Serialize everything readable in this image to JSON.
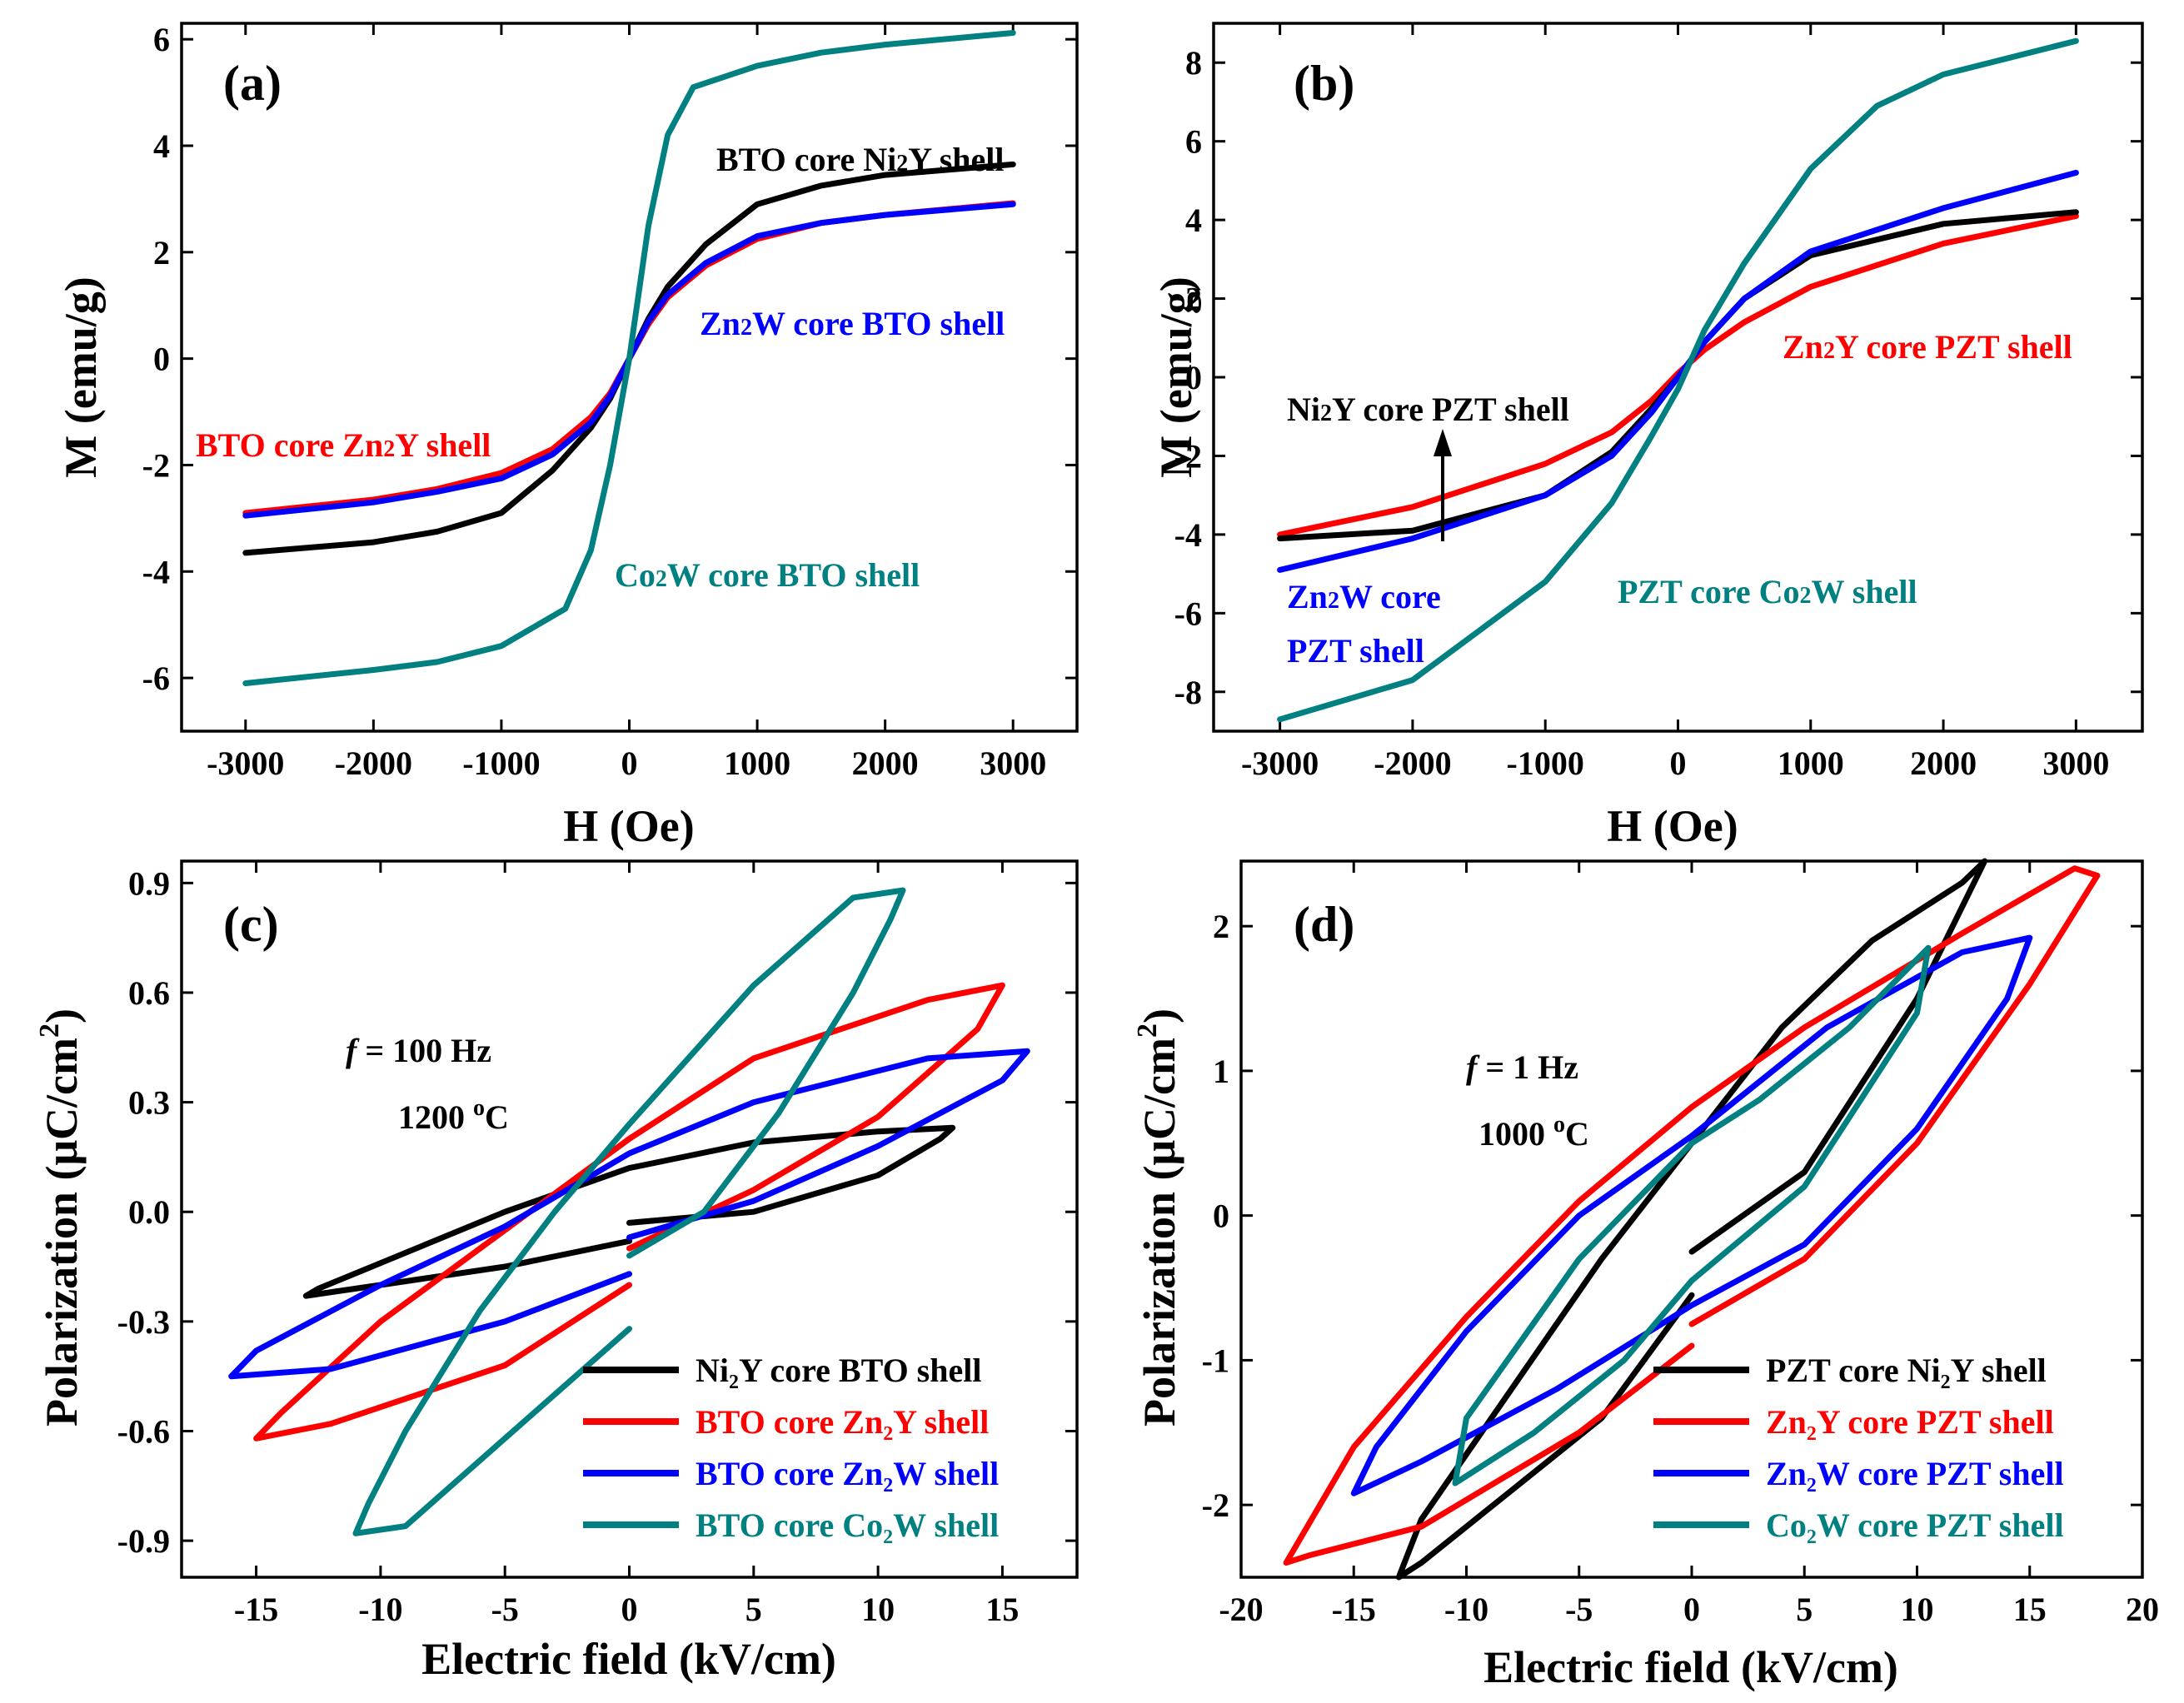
{
  "chart_data": [
    {
      "type": "line",
      "panel_label": "(a)",
      "xlabel": "H (Oe)",
      "ylabel": "M (emu/g)",
      "xlim": [
        -3500,
        3500
      ],
      "ylim": [
        -7,
        6.3
      ],
      "xticks": [
        -3000,
        -2000,
        -1000,
        0,
        1000,
        2000,
        3000
      ],
      "xtick_labels": [
        "-3000",
        "-2000",
        "-1000",
        "0",
        "1000",
        "2000",
        "3000"
      ],
      "yticks": [
        -6,
        -4,
        -2,
        0,
        2,
        4,
        6
      ],
      "ytick_labels": [
        "-6",
        "-4",
        "-2",
        "0",
        "2",
        "4",
        "6"
      ],
      "series": [
        {
          "name": "BTO core Ni2Y shell",
          "color": "#000000",
          "x": [
            -3000,
            -2000,
            -1500,
            -1000,
            -600,
            -300,
            -150,
            0,
            150,
            300,
            600,
            1000,
            1500,
            2000,
            3000
          ],
          "y": [
            -3.65,
            -3.45,
            -3.25,
            -2.9,
            -2.1,
            -1.3,
            -0.75,
            0,
            0.75,
            1.35,
            2.15,
            2.9,
            3.25,
            3.45,
            3.65
          ]
        },
        {
          "name": "BTO core Zn2Y shell",
          "color": "#ff0000",
          "x": [
            -3000,
            -2000,
            -1500,
            -1000,
            -600,
            -300,
            -150,
            0,
            150,
            300,
            600,
            1000,
            1500,
            2000,
            3000
          ],
          "y": [
            -2.9,
            -2.65,
            -2.45,
            -2.15,
            -1.7,
            -1.1,
            -0.65,
            0,
            0.65,
            1.15,
            1.75,
            2.25,
            2.55,
            2.7,
            2.92
          ]
        },
        {
          "name": "Zn2W core BTO shell",
          "color": "#0000ff",
          "x": [
            -3000,
            -2000,
            -1500,
            -1000,
            -600,
            -300,
            -150,
            0,
            150,
            300,
            600,
            1000,
            1500,
            2000,
            3000
          ],
          "y": [
            -2.95,
            -2.7,
            -2.5,
            -2.25,
            -1.8,
            -1.2,
            -0.7,
            0,
            0.7,
            1.2,
            1.8,
            2.3,
            2.55,
            2.7,
            2.9
          ]
        },
        {
          "name": "Co2W core BTO shell",
          "color": "#008080",
          "x": [
            -3000,
            -2000,
            -1500,
            -1000,
            -500,
            -300,
            -150,
            0,
            150,
            300,
            500,
            1000,
            1500,
            2000,
            3000
          ],
          "y": [
            -6.1,
            -5.85,
            -5.7,
            -5.4,
            -4.7,
            -3.6,
            -2.0,
            0,
            2.5,
            4.2,
            5.1,
            5.5,
            5.75,
            5.9,
            6.12
          ]
        }
      ],
      "annotations": [
        {
          "text": "BTO core Ni2Y shell",
          "color": "#000000"
        },
        {
          "text": "Zn2W core BTO shell",
          "color": "#0000ff"
        },
        {
          "text": "BTO core Zn2Y shell",
          "color": "#ff0000"
        },
        {
          "text": "Co2W core BTO shell",
          "color": "#008080"
        }
      ]
    },
    {
      "type": "line",
      "panel_label": "(b)",
      "xlabel": "H (Oe)",
      "ylabel": "M (emu/g)",
      "xlim": [
        -3500,
        3500
      ],
      "ylim": [
        -9,
        9
      ],
      "xticks": [
        -3000,
        -2000,
        -1000,
        0,
        1000,
        2000,
        3000
      ],
      "xtick_labels": [
        "-3000",
        "-2000",
        "-1000",
        "0",
        "1000",
        "2000",
        "3000"
      ],
      "yticks": [
        -8,
        -6,
        -4,
        -2,
        0,
        2,
        4,
        6,
        8
      ],
      "ytick_labels": [
        "-8",
        "-6",
        "-4",
        "-2",
        "0",
        "2",
        "4",
        "6",
        "8"
      ],
      "series": [
        {
          "name": "Zn2Y core PZT shell",
          "color": "#ff0000",
          "x": [
            -3000,
            -2000,
            -1000,
            -500,
            -200,
            0,
            200,
            500,
            1000,
            2000,
            3000
          ],
          "y": [
            -4.0,
            -3.3,
            -2.2,
            -1.4,
            -0.6,
            0.1,
            0.7,
            1.4,
            2.3,
            3.4,
            4.1
          ]
        },
        {
          "name": "Ni2Y core PZT shell",
          "color": "#000000",
          "x": [
            -3000,
            -2000,
            -1000,
            -500,
            -200,
            0,
            200,
            500,
            1000,
            2000,
            3000
          ],
          "y": [
            -4.1,
            -3.9,
            -3.0,
            -1.9,
            -0.8,
            0.0,
            0.9,
            2.0,
            3.1,
            3.9,
            4.2
          ]
        },
        {
          "name": "Zn2W core PZT shell",
          "color": "#0000ff",
          "x": [
            -3000,
            -2000,
            -1000,
            -500,
            -200,
            0,
            200,
            500,
            1000,
            2000,
            3000
          ],
          "y": [
            -4.9,
            -4.1,
            -3.0,
            -2.0,
            -0.9,
            0.0,
            0.9,
            2.0,
            3.2,
            4.3,
            5.2
          ]
        },
        {
          "name": "PZT core Co2W shell",
          "color": "#008080",
          "x": [
            -3000,
            -2000,
            -1000,
            -500,
            -200,
            0,
            200,
            500,
            1000,
            1500,
            2000,
            3000
          ],
          "y": [
            -8.7,
            -7.7,
            -5.2,
            -3.2,
            -1.5,
            -0.3,
            1.2,
            2.9,
            5.3,
            6.9,
            7.7,
            8.55
          ]
        }
      ],
      "annotations": [
        {
          "text": "Zn2Y core PZT shell",
          "color": "#ff0000"
        },
        {
          "text": "Ni2Y core PZT shell",
          "color": "#000000"
        },
        {
          "text": "Zn2W core",
          "color": "#0000ff"
        },
        {
          "text": "PZT shell",
          "color": "#0000ff"
        },
        {
          "text": "PZT core Co2W shell",
          "color": "#008080"
        }
      ]
    },
    {
      "type": "line",
      "panel_label": "(c)",
      "xlabel": "Electric field (kV/cm)",
      "ylabel": "Polarization (μC/cm²)",
      "xlim": [
        -18,
        18
      ],
      "ylim": [
        -1.0,
        0.96
      ],
      "xticks": [
        -15,
        -10,
        -5,
        0,
        5,
        10,
        15
      ],
      "xtick_labels": [
        "-15",
        "-10",
        "-5",
        "0",
        "5",
        "10",
        "15"
      ],
      "yticks": [
        -0.9,
        -0.6,
        -0.3,
        0.0,
        0.3,
        0.6,
        0.9
      ],
      "ytick_labels": [
        "-0.9",
        "-0.6",
        "-0.3",
        "0.0",
        "0.3",
        "0.6",
        "0.9"
      ],
      "annotations": [
        "f = 100 Hz",
        "1200 °C"
      ],
      "series": [
        {
          "name": "Ni2Y core BTO shell",
          "legend_label": "Ni₂Y core BTO shell",
          "color": "#000000",
          "x": [
            0,
            5,
            10,
            12.5,
            13,
            10,
            5,
            0,
            -5,
            -10,
            -12.5,
            -13,
            -10,
            -5,
            0
          ],
          "y": [
            -0.03,
            0.0,
            0.1,
            0.2,
            0.23,
            0.22,
            0.19,
            0.12,
            0.0,
            -0.14,
            -0.21,
            -0.23,
            -0.2,
            -0.15,
            -0.08
          ]
        },
        {
          "name": "BTO core Zn2Y shell",
          "legend_label": "BTO core Zn₂Y shell",
          "color": "#ff0000",
          "x": [
            0,
            5,
            10,
            14,
            15,
            12,
            5,
            0,
            -5,
            -10,
            -14,
            -15,
            -12,
            -5,
            0
          ],
          "y": [
            -0.1,
            0.06,
            0.26,
            0.5,
            0.62,
            0.58,
            0.42,
            0.2,
            -0.05,
            -0.3,
            -0.55,
            -0.62,
            -0.58,
            -0.42,
            -0.2
          ]
        },
        {
          "name": "BTO core Zn2W shell",
          "legend_label": "BTO core Zn₂W shell",
          "color": "#0000ff",
          "x": [
            0,
            5,
            10,
            15,
            16,
            12,
            5,
            0,
            -5,
            -10,
            -15,
            -16,
            -12,
            -5,
            0
          ],
          "y": [
            -0.07,
            0.03,
            0.18,
            0.36,
            0.44,
            0.42,
            0.3,
            0.16,
            -0.04,
            -0.2,
            -0.38,
            -0.45,
            -0.43,
            -0.3,
            -0.17
          ]
        },
        {
          "name": "BTO core Co2W shell",
          "legend_label": "BTO core Co₂W shell",
          "color": "#008080",
          "x": [
            0,
            3,
            6,
            9,
            10.5,
            11,
            9,
            5,
            0,
            -3,
            -6,
            -9,
            -10.5,
            -11,
            -9,
            -5,
            0
          ],
          "y": [
            -0.12,
            0.0,
            0.27,
            0.6,
            0.8,
            0.88,
            0.86,
            0.62,
            0.24,
            0.0,
            -0.27,
            -0.6,
            -0.8,
            -0.88,
            -0.86,
            -0.62,
            -0.32
          ]
        }
      ]
    },
    {
      "type": "line",
      "panel_label": "(d)",
      "xlabel": "Electric field (kV/cm)",
      "ylabel": "Polarization (μC/cm²)",
      "xlim": [
        -20,
        20
      ],
      "ylim": [
        -2.5,
        2.45
      ],
      "xticks": [
        -20,
        -15,
        -10,
        -5,
        0,
        5,
        10,
        15,
        20
      ],
      "xtick_labels": [
        "-20",
        "-15",
        "-10",
        "-5",
        "0",
        "5",
        "10",
        "15",
        "20"
      ],
      "yticks": [
        -2,
        -1,
        0,
        1,
        2
      ],
      "ytick_labels": [
        "-2",
        "-1",
        "0",
        "1",
        "2"
      ],
      "annotations": [
        "f = 1 Hz",
        "1000 °C"
      ],
      "series": [
        {
          "name": "PZT core Ni2Y shell",
          "legend_label": "PZT core Ni₂Y shell",
          "color": "#000000",
          "x": [
            0,
            5,
            10,
            13,
            12,
            8,
            4,
            0,
            -4,
            -8,
            -12,
            -13,
            -12,
            -8,
            -4,
            0
          ],
          "y": [
            -0.25,
            0.3,
            1.5,
            2.45,
            2.3,
            1.9,
            1.3,
            0.5,
            -0.3,
            -1.2,
            -2.1,
            -2.5,
            -2.4,
            -1.9,
            -1.4,
            -0.55
          ]
        },
        {
          "name": "Zn2Y core PZT shell",
          "legend_label": "Zn₂Y core PZT shell",
          "color": "#ff0000",
          "x": [
            0,
            5,
            10,
            15,
            18,
            17,
            12,
            5,
            0,
            -5,
            -10,
            -15,
            -18,
            -17,
            -12,
            -5,
            0
          ],
          "y": [
            -0.75,
            -0.3,
            0.5,
            1.6,
            2.35,
            2.4,
            1.95,
            1.3,
            0.75,
            0.1,
            -0.7,
            -1.6,
            -2.4,
            -2.35,
            -2.15,
            -1.5,
            -0.9
          ]
        },
        {
          "name": "Zn2W core PZT shell",
          "legend_label": "Zn₂W core PZT shell",
          "color": "#0000ff",
          "x": [
            0,
            5,
            10,
            14,
            15,
            12,
            6,
            0,
            -5,
            -10,
            -14,
            -15,
            -12,
            -6,
            0
          ],
          "y": [
            -0.62,
            -0.2,
            0.6,
            1.5,
            1.92,
            1.82,
            1.3,
            0.55,
            0.0,
            -0.8,
            -1.6,
            -1.92,
            -1.7,
            -1.2,
            -0.62
          ]
        },
        {
          "name": "Co2W core PZT shell",
          "legend_label": "Co₂W core PZT shell",
          "color": "#008080",
          "x": [
            0,
            5,
            10,
            10.5,
            7,
            3,
            0,
            -5,
            -10,
            -10.5,
            -7,
            -3,
            0
          ],
          "y": [
            -0.45,
            0.2,
            1.4,
            1.85,
            1.3,
            0.8,
            0.5,
            -0.3,
            -1.4,
            -1.85,
            -1.5,
            -1.0,
            -0.45
          ]
        }
      ]
    }
  ]
}
